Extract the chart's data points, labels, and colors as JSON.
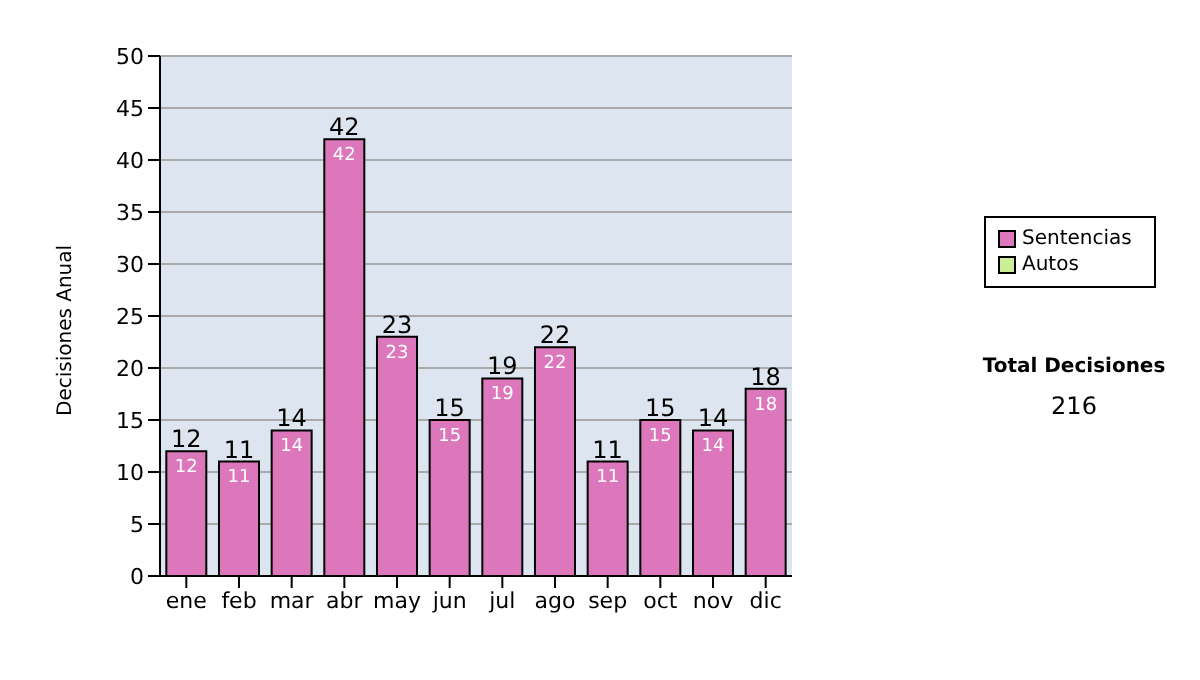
{
  "chart_data": {
    "type": "bar",
    "stacked": true,
    "ylabel": "Decisiones Anual",
    "categories": [
      "ene",
      "feb",
      "mar",
      "abr",
      "may",
      "jun",
      "jul",
      "ago",
      "sep",
      "oct",
      "nov",
      "dic"
    ],
    "series": [
      {
        "name": "Sentencias",
        "color": "#dd77bb",
        "values": [
          12,
          11,
          14,
          42,
          23,
          15,
          19,
          22,
          11,
          15,
          14,
          18
        ],
        "value_labels": [
          "12",
          "11",
          "14",
          "42",
          "23",
          "15",
          "19",
          "22",
          "11",
          "15",
          "14",
          "18"
        ]
      },
      {
        "name": "Autos",
        "color": "#ccee99",
        "values": [
          0,
          0,
          0,
          0,
          0,
          0,
          0,
          0,
          0,
          0,
          0,
          0
        ]
      }
    ],
    "totals": [
      "12",
      "11",
      "14",
      "42",
      "23",
      "15",
      "19",
      "22",
      "11",
      "15",
      "14",
      "18"
    ],
    "ylim": [
      0,
      50
    ],
    "yticks": [
      0,
      5,
      10,
      15,
      20,
      25,
      30,
      35,
      40,
      45,
      50
    ],
    "grid": "y",
    "legend": "right",
    "annotations": [
      "Total Decisiones",
      "216"
    ]
  }
}
